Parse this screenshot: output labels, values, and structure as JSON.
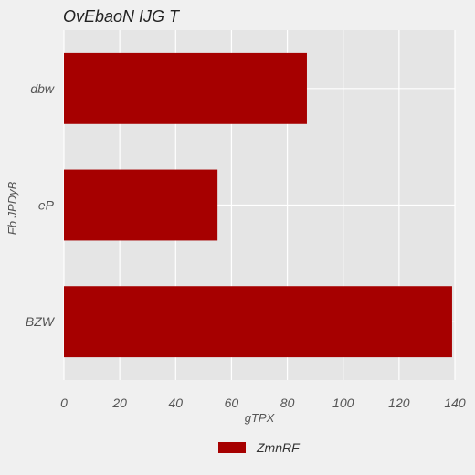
{
  "chart_data": {
    "type": "bar",
    "orientation": "horizontal",
    "title": "OvEbaoN IJG T",
    "xlabel": "gTPX",
    "ylabel": "Fb JPDyB",
    "categories": [
      "dbw",
      "eP",
      "BZW"
    ],
    "series": [
      {
        "name": "ZmnRF",
        "values": [
          87,
          55,
          139
        ],
        "color": "#a60000"
      }
    ],
    "xlim": [
      0,
      140
    ],
    "xticks": [
      0,
      20,
      40,
      60,
      80,
      100,
      120,
      140
    ],
    "grid": true,
    "legend_position": "bottom-center",
    "colors": {
      "background": "#f0f0f0",
      "plot_background": "#e5e5e5",
      "grid": "#ffffff",
      "bar": "#a60000"
    }
  }
}
